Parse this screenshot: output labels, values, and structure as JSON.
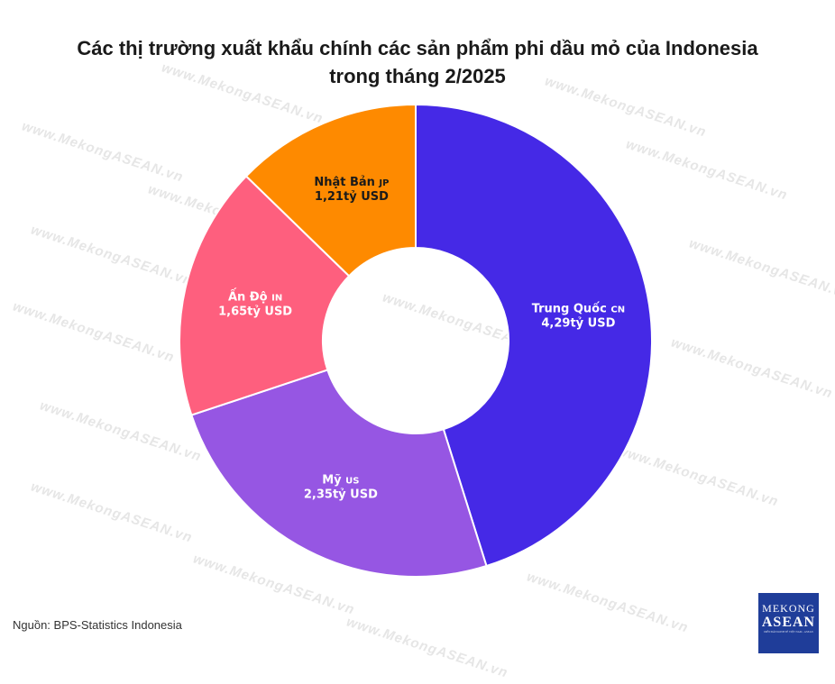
{
  "title_line1": "Các thị trường xuất khẩu chính các sản phẩm phi dầu mỏ của Indonesia",
  "title_line2": "trong tháng 2/2025",
  "source": "Nguồn: BPS-Statistics Indonesia",
  "watermark": "www.MekongASEAN.vn",
  "logo": {
    "line1": "MEKONG",
    "line2": "ASEAN",
    "line3": "DIỄN ĐÀN KINH TẾ VIỆT NAM - ASEAN"
  },
  "chart_data": {
    "type": "pie",
    "donut": true,
    "unit": "tỷ USD",
    "slices": [
      {
        "label": "Trung Quốc",
        "code": "CN",
        "value": 4.29,
        "value_label": "4,29tỷ USD",
        "color": "#4529e6",
        "text_color": "#ffffff"
      },
      {
        "label": "Mỹ",
        "code": "US",
        "value": 2.35,
        "value_label": "2,35tỷ USD",
        "color": "#9656e3",
        "text_color": "#ffffff"
      },
      {
        "label": "Ấn Độ",
        "code": "IN",
        "value": 1.65,
        "value_label": "1,65tỷ USD",
        "color": "#fe5f7e",
        "text_color": "#ffffff"
      },
      {
        "label": "Nhật Bản",
        "code": "JP",
        "value": 1.21,
        "value_label": "1,21tỷ USD",
        "color": "#fe8a00",
        "text_color": "#1a1a1a"
      }
    ]
  }
}
